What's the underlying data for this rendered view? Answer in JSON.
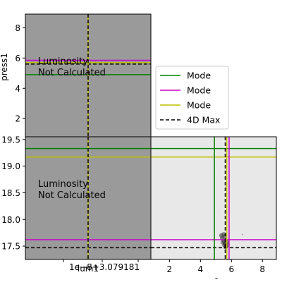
{
  "colors": {
    "mode_green": "#008000",
    "mode_magenta": "#cc00cc",
    "mode_yellow": "#bfbf00",
    "max_4d": "#000000",
    "left_panel_bg": "#9a9a9a",
    "right_panel_bg": "#e8e8e8"
  },
  "chart_data": [
    {
      "type": "heatmap",
      "panel": "top-left",
      "xlabel": "",
      "ylabel": "press1",
      "xlim": [
        -0.5,
        0.5
      ],
      "ylim": [
        0.8,
        8.9
      ],
      "yticks": [
        2,
        4,
        6,
        8
      ],
      "annotation": "Luminosity\nNot Calculated",
      "hlines": [
        {
          "value": 5.85,
          "color": "mode_magenta"
        },
        {
          "value": 5.7,
          "color": "mode_yellow"
        },
        {
          "value": 5.6,
          "color": "max_4d",
          "dashed": true
        },
        {
          "value": 4.9,
          "color": "mode_green"
        }
      ],
      "vlines": [
        {
          "value": 0.0,
          "color": "mode_yellow"
        },
        {
          "value": 0.0,
          "color": "max_4d",
          "dashed": true
        }
      ]
    },
    {
      "type": "heatmap",
      "panel": "bottom-left",
      "xlabel": "lum1",
      "ylabel": "",
      "xtick_offset_label": "1e−8+3.079181",
      "xlim": [
        -0.5,
        0.5
      ],
      "ylim": [
        17.25,
        19.55
      ],
      "yticks": [
        17.5,
        18.0,
        18.5,
        19.0,
        19.5
      ],
      "annotation": "Luminosity\nNot Calculated",
      "hlines": [
        {
          "value": 19.33,
          "color": "mode_green"
        },
        {
          "value": 19.17,
          "color": "mode_yellow"
        },
        {
          "value": 17.62,
          "color": "mode_magenta"
        },
        {
          "value": 17.47,
          "color": "max_4d",
          "dashed": true
        }
      ],
      "vlines": [
        {
          "value": 0.0,
          "color": "mode_yellow"
        },
        {
          "value": 0.0,
          "color": "max_4d",
          "dashed": true
        }
      ]
    },
    {
      "type": "heatmap",
      "panel": "bottom-right",
      "xlabel": "-",
      "ylabel": "",
      "xlim": [
        0.8,
        8.9
      ],
      "ylim": [
        17.25,
        19.55
      ],
      "xticks": [
        2,
        4,
        6,
        8
      ],
      "hlines": [
        {
          "value": 19.33,
          "color": "mode_green"
        },
        {
          "value": 19.17,
          "color": "mode_yellow"
        },
        {
          "value": 17.62,
          "color": "mode_magenta"
        },
        {
          "value": 17.47,
          "color": "max_4d",
          "dashed": true
        }
      ],
      "vlines": [
        {
          "value": 4.9,
          "color": "mode_green"
        },
        {
          "value": 5.6,
          "color": "max_4d",
          "dashed": true
        },
        {
          "value": 5.7,
          "color": "mode_yellow"
        },
        {
          "value": 5.85,
          "color": "mode_magenta"
        }
      ],
      "points": [
        {
          "x": 5.55,
          "y": 17.52
        },
        {
          "x": 5.6,
          "y": 17.55
        },
        {
          "x": 5.5,
          "y": 17.6
        },
        {
          "x": 5.65,
          "y": 17.5
        },
        {
          "x": 5.45,
          "y": 17.57
        },
        {
          "x": 5.7,
          "y": 17.58
        },
        {
          "x": 5.4,
          "y": 17.65
        },
        {
          "x": 5.58,
          "y": 17.68
        },
        {
          "x": 5.62,
          "y": 17.48
        },
        {
          "x": 5.35,
          "y": 17.7
        },
        {
          "x": 5.5,
          "y": 17.72
        },
        {
          "x": 5.75,
          "y": 17.53
        },
        {
          "x": 6.7,
          "y": 17.72
        }
      ]
    }
  ],
  "legend": {
    "placement": "center",
    "entries": [
      {
        "label": "Mode",
        "color": "mode_green",
        "dashed": false
      },
      {
        "label": "Mode",
        "color": "mode_magenta",
        "dashed": false
      },
      {
        "label": "Mode",
        "color": "mode_yellow",
        "dashed": false
      },
      {
        "label": "4D Max",
        "color": "max_4d",
        "dashed": true
      }
    ]
  }
}
